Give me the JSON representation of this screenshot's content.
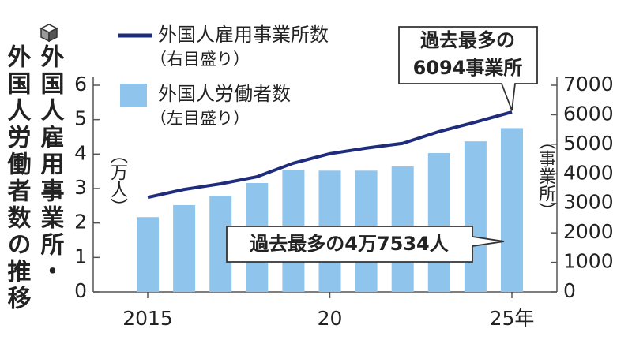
{
  "chart_data": {
    "type": "bar",
    "title_lines": [
      "外国人雇用事業所・",
      "外国人労働者数の推移"
    ],
    "categories": [
      "2015",
      null,
      null,
      null,
      null,
      "20",
      null,
      null,
      null,
      null,
      "25年"
    ],
    "series": [
      {
        "name": "外国人雇用事業所数",
        "scale_note": "（右目盛り）",
        "type": "line",
        "axis": "y2",
        "color": "#1f2c7c",
        "values": [
          3200,
          3470,
          3660,
          3900,
          4360,
          4680,
          4870,
          5030,
          5430,
          5750,
          6094
        ]
      },
      {
        "name": "外国人労働者数",
        "scale_note": "（左目盛り）",
        "type": "bar",
        "axis": "y",
        "color": "#8fc4ec",
        "values": [
          2.17,
          2.52,
          2.79,
          3.16,
          3.55,
          3.52,
          3.52,
          3.64,
          4.03,
          4.37,
          4.7534
        ]
      }
    ],
    "ylim": [
      0,
      6
    ],
    "yticks": [
      0,
      1,
      2,
      3,
      4,
      5,
      6
    ],
    "ylabel": "（万人）",
    "y2lim": [
      0,
      7000
    ],
    "y2ticks": [
      0,
      1000,
      2000,
      3000,
      4000,
      5000,
      6000,
      7000
    ],
    "y2label": "（事業所）",
    "annotations": [
      {
        "lines": [
          "過去最多の",
          "6094事業所"
        ]
      },
      {
        "lines": [
          "過去最多の4万7534人"
        ]
      }
    ]
  }
}
